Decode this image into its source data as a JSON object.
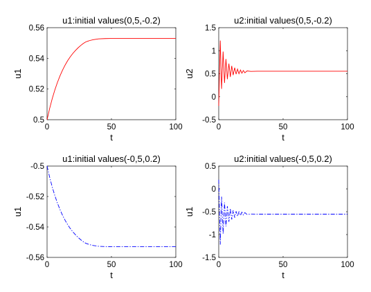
{
  "chart_data": [
    {
      "type": "line",
      "title": "u1:initial values(0,5,-0.2)",
      "xlabel": "t",
      "ylabel": "u1",
      "xlim": [
        0,
        100
      ],
      "ylim": [
        0.5,
        0.56
      ],
      "xticks": [
        0,
        50,
        100
      ],
      "yticks": [
        0.5,
        0.52,
        0.54,
        0.56
      ],
      "xtick_labels": [
        "0",
        "50",
        "100"
      ],
      "ytick_labels": [
        "0.5",
        "0.52",
        "0.54",
        "0.56"
      ],
      "grid": false,
      "legend": false,
      "series": [
        {
          "color": "#ff0000",
          "dash": "solid",
          "x": [
            0,
            2,
            4,
            6,
            8,
            10,
            12,
            14,
            16,
            18,
            20,
            22,
            24,
            26,
            28,
            30,
            33,
            36,
            40,
            45,
            50,
            60,
            70,
            80,
            90,
            100
          ],
          "y": [
            0.5,
            0.5073,
            0.5137,
            0.5193,
            0.5242,
            0.5285,
            0.5323,
            0.5356,
            0.5385,
            0.541,
            0.5432,
            0.5451,
            0.5468,
            0.5483,
            0.5496,
            0.5507,
            0.5516,
            0.5522,
            0.5527,
            0.5529,
            0.553,
            0.553,
            0.553,
            0.553,
            0.553,
            0.553
          ]
        }
      ]
    },
    {
      "type": "line",
      "title": "u2:initial values(0,5,-0.2)",
      "xlabel": "t",
      "ylabel": "u2",
      "xlim": [
        0,
        100
      ],
      "ylim": [
        -0.5,
        1.5
      ],
      "xticks": [
        0,
        50,
        100
      ],
      "yticks": [
        -0.5,
        0,
        0.5,
        1,
        1.5
      ],
      "xtick_labels": [
        "0",
        "50",
        "100"
      ],
      "ytick_labels": [
        "-0.5",
        "0",
        "0.5",
        "1",
        "1.5"
      ],
      "grid": false,
      "legend": false,
      "series": [
        {
          "color": "#ff0000",
          "dash": "solid",
          "x": [
            0,
            1.2,
            2.2,
            3.4,
            4.5,
            5.6,
            6.7,
            7.9,
            9.0,
            10.1,
            11.2,
            12.4,
            13.5,
            14.6,
            15.7,
            16.9,
            18.0,
            19.1,
            20.3,
            22,
            25,
            30,
            40,
            60,
            80,
            100
          ],
          "y": [
            -0.2,
            1.22,
            0.17,
            0.98,
            0.3,
            0.82,
            0.38,
            0.72,
            0.43,
            0.67,
            0.47,
            0.63,
            0.49,
            0.6,
            0.5,
            0.58,
            0.51,
            0.57,
            0.52,
            0.56,
            0.55,
            0.553,
            0.553,
            0.553,
            0.553,
            0.553
          ]
        }
      ]
    },
    {
      "type": "line",
      "title": "u1:initial values(-0,5,0.2)",
      "xlabel": "t",
      "ylabel": "u1",
      "xlim": [
        0,
        100
      ],
      "ylim": [
        -0.56,
        -0.5
      ],
      "xticks": [
        0,
        50,
        100
      ],
      "yticks": [
        -0.56,
        -0.54,
        -0.52,
        -0.5
      ],
      "xtick_labels": [
        "0",
        "50",
        "100"
      ],
      "ytick_labels": [
        "-0.56",
        "-0.54",
        "-0.52",
        "-0.5"
      ],
      "grid": false,
      "legend": false,
      "series": [
        {
          "color": "#0000ff",
          "dash": "dashdot",
          "x": [
            0,
            2,
            4,
            6,
            8,
            10,
            12,
            14,
            16,
            18,
            20,
            22,
            24,
            26,
            28,
            30,
            33,
            36,
            40,
            45,
            50,
            60,
            70,
            80,
            90,
            100
          ],
          "y": [
            -0.5,
            -0.5073,
            -0.5137,
            -0.5193,
            -0.5242,
            -0.5285,
            -0.5323,
            -0.5356,
            -0.5385,
            -0.541,
            -0.5432,
            -0.5451,
            -0.5468,
            -0.5483,
            -0.5496,
            -0.5507,
            -0.5516,
            -0.5522,
            -0.5527,
            -0.5529,
            -0.553,
            -0.553,
            -0.553,
            -0.553,
            -0.553,
            -0.553
          ]
        }
      ]
    },
    {
      "type": "line",
      "title": "u2:initial values(-0,5,0.2)",
      "xlabel": "t",
      "ylabel": "u1",
      "xlim": [
        0,
        100
      ],
      "ylim": [
        -1.5,
        0.5
      ],
      "xticks": [
        0,
        50,
        100
      ],
      "yticks": [
        -1.5,
        -1,
        -0.5,
        0,
        0.5
      ],
      "xtick_labels": [
        "0",
        "50",
        "100"
      ],
      "ytick_labels": [
        "-1.5",
        "-1",
        "-0.5",
        "0",
        "0.5"
      ],
      "grid": false,
      "legend": false,
      "series": [
        {
          "color": "#0000ff",
          "dash": "dashdot",
          "x": [
            0,
            1.2,
            2.2,
            3.4,
            4.5,
            5.6,
            6.7,
            7.9,
            9.0,
            10.1,
            11.2,
            12.4,
            13.5,
            14.6,
            15.7,
            16.9,
            18.0,
            19.1,
            20.3,
            22,
            25,
            30,
            40,
            60,
            80,
            100
          ],
          "y": [
            0.2,
            -1.22,
            -0.17,
            -0.98,
            -0.3,
            -0.82,
            -0.38,
            -0.72,
            -0.43,
            -0.67,
            -0.47,
            -0.63,
            -0.49,
            -0.6,
            -0.5,
            -0.58,
            -0.51,
            -0.57,
            -0.52,
            -0.56,
            -0.55,
            -0.553,
            -0.553,
            -0.553,
            -0.553,
            -0.553
          ]
        }
      ]
    }
  ]
}
